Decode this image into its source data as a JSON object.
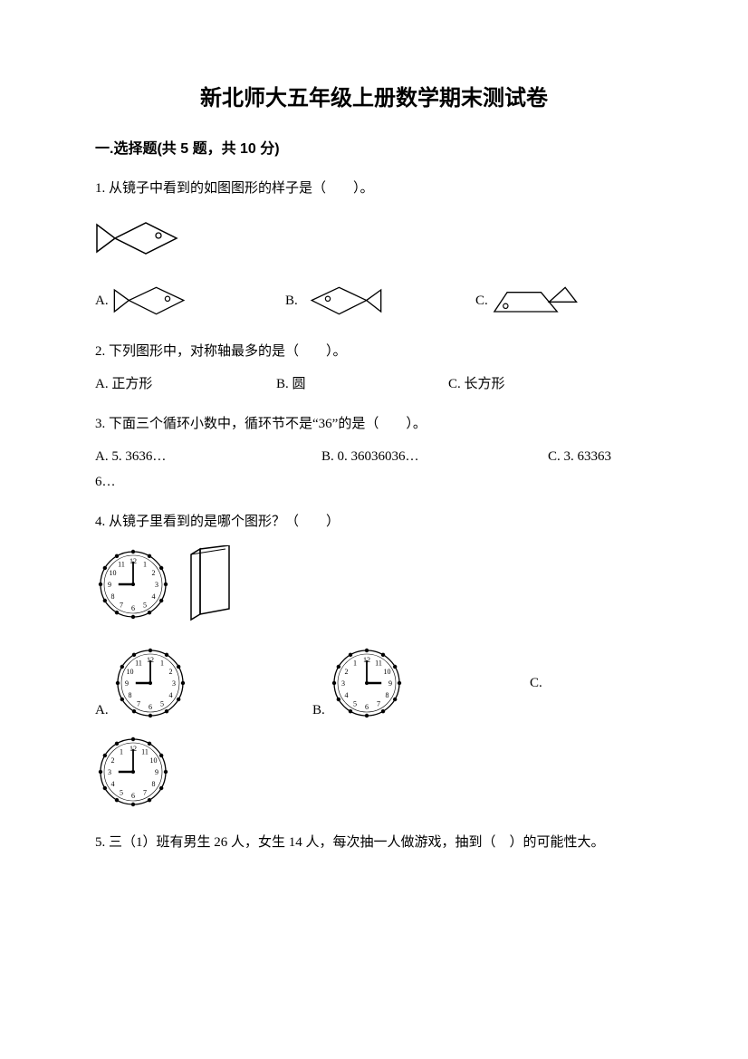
{
  "title": "新北师大五年级上册数学期末测试卷",
  "section1": {
    "header": "一.选择题(共 5 题，共 10 分)"
  },
  "q1": {
    "text": "1. 从镜子中看到的如图图形的样子是（　　）。",
    "a": "A.",
    "b": "B.",
    "c": "C."
  },
  "q2": {
    "text": "2. 下列图形中，对称轴最多的是（　　）。",
    "a": "A. 正方形",
    "b": "B. 圆",
    "c": "C. 长方形"
  },
  "q3": {
    "text": "3. 下面三个循环小数中，循环节不是“36”的是（　　）。",
    "a": "A. 5. 3636…",
    "b": "B. 0. 36036036…",
    "c": "C. 3. 63363",
    "trail": "6…"
  },
  "q4": {
    "text": "4. 从镜子里看到的是哪个图形？（　　）",
    "a": "A.",
    "b": "B.",
    "c": "C."
  },
  "q5": {
    "text": "5. 三（1）班有男生 26 人，女生 14 人，每次抽一人做游戏，抽到（　）的可能性大。"
  },
  "figures": {
    "fish": {
      "stroke": "#000000",
      "fill": "none"
    },
    "clock": {
      "radius": 36,
      "dot_r": 2.2,
      "stroke": "#000000",
      "numbers": [
        "12",
        "1",
        "2",
        "3",
        "4",
        "5",
        "6",
        "7",
        "8",
        "9",
        "10",
        "11"
      ]
    }
  }
}
